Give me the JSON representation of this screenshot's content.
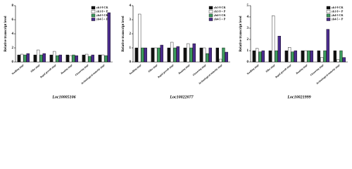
{
  "chart_data": [
    {
      "type": "bar",
      "title": "Loc10005106",
      "y_label": "Relative transcript level",
      "categories": [
        "Seedling stage",
        "Tiller stage",
        "Rapid growth stage",
        "Booting stage",
        "Flowering stage",
        "Technological maturity stage"
      ],
      "series": [
        {
          "name": "yh1-9 CK",
          "color": "#111111",
          "values": [
            1.0,
            1.0,
            1.0,
            1.0,
            1.0,
            1.0
          ]
        },
        {
          "name": "yh1-9 + P",
          "color": "#ffffff",
          "values": [
            1.1,
            1.7,
            1.5,
            0.9,
            1.1,
            1.0
          ]
        },
        {
          "name": "yh4-5 CK",
          "color": "#3b9a5c",
          "values": [
            1.0,
            1.0,
            0.9,
            1.0,
            0.8,
            0.9
          ]
        },
        {
          "name": "yh4-5 + P",
          "color": "#4a2b8c",
          "values": [
            1.2,
            1.2,
            1.0,
            0.9,
            1.0,
            7.0
          ]
        }
      ],
      "ylim": [
        0,
        8
      ],
      "yticks": [
        0,
        2,
        4,
        6,
        8
      ],
      "legend": "upper right"
    },
    {
      "type": "bar",
      "title": "Loc10022077",
      "y_label": "Relative transcript level",
      "categories": [
        "Seedling stage",
        "Tiller stage",
        "Rapid growth stage",
        "Booting stage",
        "Flowering stage",
        "Technological maturity stage"
      ],
      "series": [
        {
          "name": "yh1-9 CK",
          "color": "#111111",
          "values": [
            1.0,
            1.0,
            1.0,
            1.0,
            1.0,
            1.0
          ]
        },
        {
          "name": "yh1-9 + P",
          "color": "#ffffff",
          "values": [
            3.4,
            1.0,
            1.4,
            1.3,
            1.0,
            0.2
          ]
        },
        {
          "name": "yh4-5 CK",
          "color": "#3b9a5c",
          "values": [
            1.0,
            1.0,
            1.0,
            1.0,
            0.6,
            1.0
          ]
        },
        {
          "name": "yh4-5 + P",
          "color": "#4a2b8c",
          "values": [
            1.0,
            1.2,
            1.1,
            1.3,
            1.0,
            0.7
          ]
        }
      ],
      "ylim": [
        0,
        4
      ],
      "yticks": [
        0,
        1,
        2,
        3,
        4
      ],
      "legend": "upper right"
    },
    {
      "type": "bar",
      "title": "Loc10021999",
      "y_label": "Relative transcript level",
      "categories": [
        "Seedling stage",
        "Tiller stage",
        "Rapid growth stage",
        "Booting stage",
        "Flowering stage",
        "Technological maturity stage"
      ],
      "series": [
        {
          "name": "yh1-9 CK",
          "color": "#111111",
          "values": [
            1.0,
            1.0,
            1.0,
            1.0,
            1.0,
            1.0
          ]
        },
        {
          "name": "yh1-9 + P",
          "color": "#ffffff",
          "values": [
            1.2,
            4.1,
            1.3,
            1.0,
            0.4,
            0.2
          ]
        },
        {
          "name": "yh4-5 CK",
          "color": "#3b9a5c",
          "values": [
            0.9,
            1.0,
            0.9,
            1.0,
            1.0,
            1.0
          ]
        },
        {
          "name": "yh4-5 + P",
          "color": "#4a2b8c",
          "values": [
            1.0,
            2.3,
            1.0,
            1.0,
            2.9,
            0.4
          ]
        }
      ],
      "ylim": [
        0,
        5
      ],
      "yticks": [
        0,
        1,
        2,
        3,
        4,
        5
      ],
      "legend": "upper right"
    }
  ]
}
